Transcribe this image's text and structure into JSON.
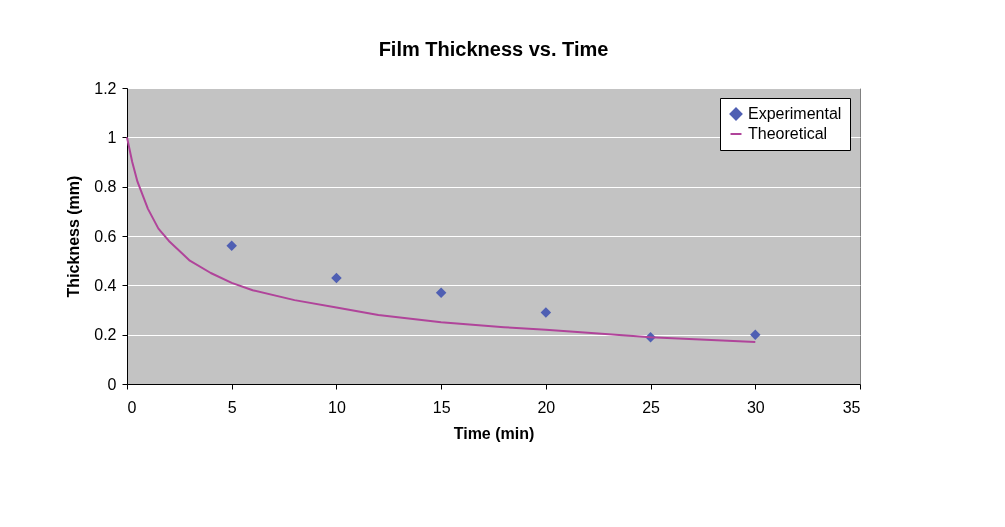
{
  "chart_data": {
    "type": "scatter",
    "title": "Film Thickness vs. Time",
    "xlabel": "Time (min)",
    "ylabel": "Thickness (mm)",
    "xlim": [
      0,
      35
    ],
    "xticks": [
      0,
      5,
      10,
      15,
      20,
      25,
      30,
      35
    ],
    "ylim": [
      0,
      1.2
    ],
    "yticks": [
      0,
      0.2,
      0.4,
      0.6,
      0.8,
      1,
      1.2
    ],
    "grid": "y",
    "legend": "top right",
    "marker": "diamond",
    "series": [
      {
        "name": "Experimental",
        "color": "#4f5fb3",
        "x": [
          5,
          10,
          15,
          20,
          25,
          30
        ],
        "values": [
          0.56,
          0.43,
          0.37,
          0.29,
          0.19,
          0.2
        ]
      },
      {
        "name": "Theoretical",
        "type": "line",
        "marker": "none",
        "color": "#b0449a",
        "line_style": "solid",
        "x": [
          0,
          0.25,
          0.5,
          1,
          1.5,
          2,
          3,
          4,
          5,
          6,
          8,
          10,
          12,
          15,
          18,
          20,
          25,
          30
        ],
        "values": [
          1.0,
          0.9,
          0.82,
          0.71,
          0.63,
          0.58,
          0.5,
          0.45,
          0.41,
          0.38,
          0.34,
          0.31,
          0.28,
          0.25,
          0.23,
          0.22,
          0.19,
          0.17
        ]
      }
    ]
  }
}
